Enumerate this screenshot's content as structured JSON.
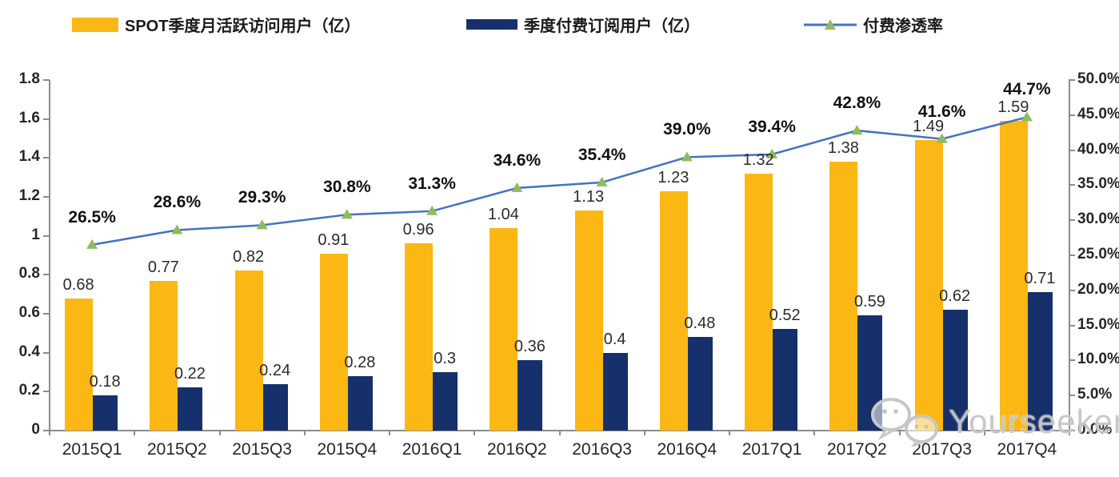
{
  "legend": {
    "items": [
      {
        "label": "SPOT季度月活跃访问用户（亿）",
        "swatch_color": "#FBB814",
        "type": "bar-swatch"
      },
      {
        "label": "季度付费订阅用户（亿）",
        "swatch_color": "#16306B",
        "type": "bar-swatch"
      },
      {
        "label": "付费渗透率",
        "line_color": "#4472C4",
        "marker_color": "#8FBC5A",
        "type": "line-marker"
      }
    ]
  },
  "watermark": {
    "text": "Yourseeker",
    "icon": "wechat-icon"
  },
  "chart_data": {
    "type": "bar",
    "subtype": "combo-bar-line-dual-axis",
    "title": "",
    "categories": [
      "2015Q1",
      "2015Q2",
      "2015Q3",
      "2015Q4",
      "2016Q1",
      "2016Q2",
      "2016Q3",
      "2016Q4",
      "2017Q1",
      "2017Q2",
      "2017Q3",
      "2017Q4"
    ],
    "series": [
      {
        "name": "SPOT季度月活跃访问用户（亿）",
        "type": "bar",
        "color": "#FBB814",
        "axis": "left",
        "values": [
          0.68,
          0.77,
          0.82,
          0.91,
          0.96,
          1.04,
          1.13,
          1.23,
          1.32,
          1.38,
          1.49,
          1.59
        ],
        "labels": [
          "0.68",
          "0.77",
          "0.82",
          "0.91",
          "0.96",
          "1.04",
          "1.13",
          "1.23",
          "1.32",
          "1.38",
          "1.49",
          "1.59"
        ]
      },
      {
        "name": "季度付费订阅用户（亿）",
        "type": "bar",
        "color": "#16306B",
        "axis": "left",
        "values": [
          0.18,
          0.22,
          0.24,
          0.28,
          0.3,
          0.36,
          0.4,
          0.48,
          0.52,
          0.59,
          0.62,
          0.71
        ],
        "labels": [
          "0.18",
          "0.22",
          "0.24",
          "0.28",
          "0.3",
          "0.36",
          "0.4",
          "0.48",
          "0.52",
          "0.59",
          "0.62",
          "0.71"
        ]
      },
      {
        "name": "付费渗透率",
        "type": "line",
        "color": "#4472C4",
        "marker": "triangle",
        "marker_color": "#8FBC5A",
        "axis": "right",
        "values": [
          26.5,
          28.6,
          29.3,
          30.8,
          31.3,
          34.6,
          35.4,
          39.0,
          39.4,
          42.8,
          41.6,
          44.7
        ],
        "labels": [
          "26.5%",
          "28.6%",
          "29.3%",
          "30.8%",
          "31.3%",
          "34.6%",
          "35.4%",
          "39.0%",
          "39.4%",
          "42.8%",
          "41.6%",
          "44.7%"
        ]
      }
    ],
    "left_axis": {
      "min": 0,
      "max": 1.8,
      "step": 0.2,
      "tick_labels": [
        "1.8",
        "1.6",
        "1.4",
        "1.2",
        "1",
        "0.8",
        "0.6",
        "0.4",
        "0.2",
        "0"
      ]
    },
    "right_axis": {
      "min": 0,
      "max": 50,
      "step": 5,
      "tick_labels": [
        "50.0%",
        "45.0%",
        "40.0%",
        "35.0%",
        "30.0%",
        "25.0%",
        "20.0%",
        "15.0%",
        "10.0%",
        "5.0%",
        "0.0%"
      ]
    },
    "grid": false,
    "legend_position": "top"
  }
}
